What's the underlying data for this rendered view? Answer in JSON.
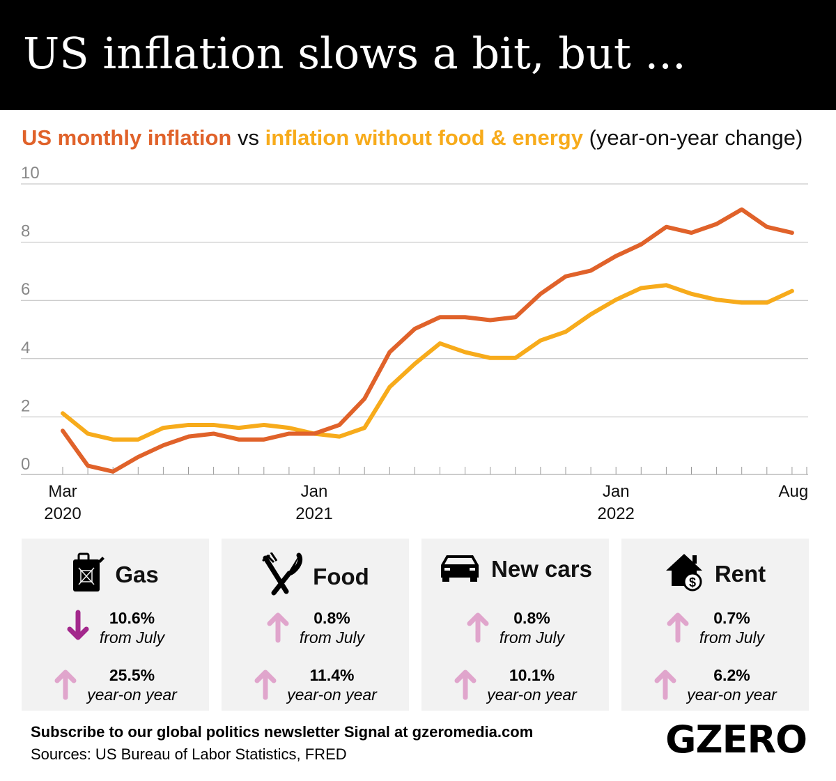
{
  "title": "US inflation slows a bit, but ...",
  "subtitle": {
    "part1": "US monthly inflation",
    "vs": " vs ",
    "part2": "inflation without food & energy",
    "part3": " (year-on-year change)"
  },
  "colors": {
    "headline": "#e0622a",
    "core": "#f7ab1b",
    "down_arrow": "#a3288c",
    "up_arrow": "#e0a5cc",
    "card_bg": "#f2f2f2"
  },
  "chart_data": {
    "type": "line",
    "x": [
      "2020-03",
      "2020-04",
      "2020-05",
      "2020-06",
      "2020-07",
      "2020-08",
      "2020-09",
      "2020-10",
      "2020-11",
      "2020-12",
      "2021-01",
      "2021-02",
      "2021-03",
      "2021-04",
      "2021-05",
      "2021-06",
      "2021-07",
      "2021-08",
      "2021-09",
      "2021-10",
      "2021-11",
      "2021-12",
      "2022-01",
      "2022-02",
      "2022-03",
      "2022-04",
      "2022-05",
      "2022-06",
      "2022-07",
      "2022-08"
    ],
    "series": [
      {
        "name": "US monthly inflation",
        "color": "#e0622a",
        "values": [
          1.5,
          0.3,
          0.1,
          0.6,
          1.0,
          1.3,
          1.4,
          1.2,
          1.2,
          1.4,
          1.4,
          1.7,
          2.6,
          4.2,
          5.0,
          5.4,
          5.4,
          5.3,
          5.4,
          6.2,
          6.8,
          7.0,
          7.5,
          7.9,
          8.5,
          8.3,
          8.6,
          9.1,
          8.5,
          8.3
        ]
      },
      {
        "name": "inflation without food & energy",
        "color": "#f7ab1b",
        "values": [
          2.1,
          1.4,
          1.2,
          1.2,
          1.6,
          1.7,
          1.7,
          1.6,
          1.7,
          1.6,
          1.4,
          1.3,
          1.6,
          3.0,
          3.8,
          4.5,
          4.2,
          4.0,
          4.0,
          4.6,
          4.9,
          5.5,
          6.0,
          6.4,
          6.5,
          6.2,
          6.0,
          5.9,
          5.9,
          6.3
        ]
      }
    ],
    "ylim": [
      0,
      10
    ],
    "yticks": [
      "0",
      "2",
      "4",
      "6",
      "8",
      "10"
    ],
    "xtick_labels": [
      {
        "index": 0,
        "line1": "Mar",
        "line2": "2020"
      },
      {
        "index": 10,
        "line1": "Jan",
        "line2": "2021"
      },
      {
        "index": 22,
        "line1": "Jan",
        "line2": "2022"
      },
      {
        "index": 29,
        "line1": "Aug",
        "line2": ""
      }
    ],
    "grid": true
  },
  "cards": [
    {
      "name": "Gas",
      "icon": "gas-can-icon",
      "monthly": {
        "value": "10.6%",
        "label": "from July",
        "direction": "down"
      },
      "yearly": {
        "value": "25.5%",
        "label": "year-on year",
        "direction": "up"
      }
    },
    {
      "name": "Food",
      "icon": "fork-knife-icon",
      "monthly": {
        "value": "0.8%",
        "label": "from July",
        "direction": "up"
      },
      "yearly": {
        "value": "11.4%",
        "label": "year-on year",
        "direction": "up"
      }
    },
    {
      "name": "New cars",
      "icon": "car-icon",
      "monthly": {
        "value": "0.8%",
        "label": "from July",
        "direction": "up"
      },
      "yearly": {
        "value": "10.1%",
        "label": "year-on year",
        "direction": "up"
      }
    },
    {
      "name": "Rent",
      "icon": "house-dollar-icon",
      "monthly": {
        "value": "0.7%",
        "label": "from July",
        "direction": "up"
      },
      "yearly": {
        "value": "6.2%",
        "label": "year-on year",
        "direction": "up"
      }
    }
  ],
  "footer": {
    "subscribe": "Subscribe to our global politics newsletter Signal at gzeromedia.com",
    "sources": "Sources: US Bureau of Labor Statistics, FRED",
    "logo": "GZERO"
  }
}
